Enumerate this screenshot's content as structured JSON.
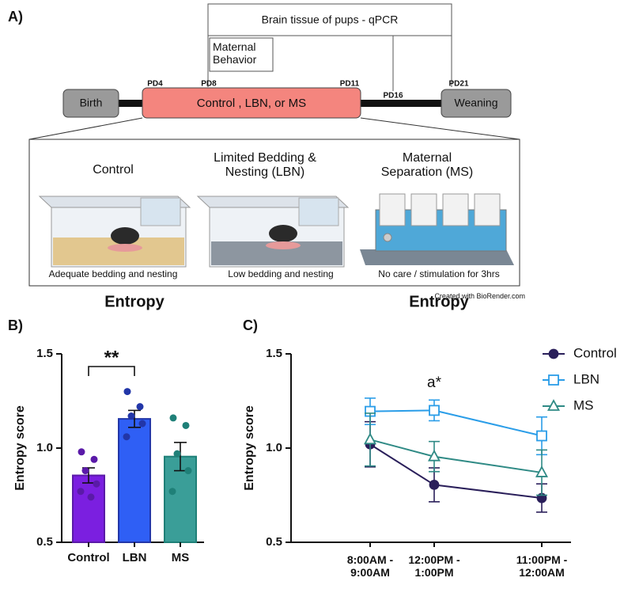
{
  "panel_a": {
    "label": "A)",
    "qpcr": "Brain tissue of pups - qPCR",
    "maternal_behavior": "Maternal Behavior",
    "timepoints": [
      "PD4",
      "PD8",
      "PD11",
      "PD16",
      "PD21"
    ],
    "birth": "Birth",
    "treatment": "Control , LBN, or MS",
    "weaning": "Weaning",
    "conditions": [
      {
        "name": "Control",
        "caption": "Adequate bedding and nesting"
      },
      {
        "name": "Limited Bedding & Nesting (LBN)",
        "caption": "Low bedding and nesting"
      },
      {
        "name": "Maternal Separation (MS)",
        "caption": "No care / stimulation for 3hrs"
      }
    ],
    "credit": "Created with BioRender.com"
  },
  "chart_data": [
    {
      "type": "bar",
      "panel_label": "B)",
      "title": "Entropy",
      "y_label": "Entropy score",
      "categories": [
        "Control",
        "LBN",
        "MS"
      ],
      "values": [
        0.855,
        1.155,
        0.955
      ],
      "errors": [
        0.04,
        0.045,
        0.075
      ],
      "colors": [
        "#7b1fe0",
        "#2f5ff5",
        "#3a9e98"
      ],
      "point_colors": [
        "#5a1aa8",
        "#2236a8",
        "#1f8078"
      ],
      "points": [
        [
          0.98,
          0.94,
          0.88,
          0.81,
          0.77,
          0.74
        ],
        [
          1.3,
          1.22,
          1.17,
          1.13,
          1.06
        ],
        [
          1.16,
          1.12,
          0.97,
          0.88,
          0.77
        ]
      ],
      "ylim": [
        0.5,
        1.5
      ],
      "yticks": [
        {
          "value": 0.5,
          "label": "0.5"
        },
        {
          "value": 1.0,
          "label": "1.0"
        },
        {
          "value": 1.5,
          "label": "1.5"
        }
      ],
      "annotation": "**"
    },
    {
      "type": "line",
      "panel_label": "C)",
      "title": "Entropy",
      "y_label": "Entropy score",
      "categories": [
        "8:00AM - 9:00AM",
        "12:00PM - 1:00PM",
        "11:00PM - 12:00AM"
      ],
      "series": [
        {
          "name": "Control",
          "color": "#2a1f5a",
          "marker": "circle",
          "values": [
            1.02,
            0.805,
            0.735
          ],
          "errors": [
            0.12,
            0.09,
            0.075
          ]
        },
        {
          "name": "LBN",
          "color": "#2a9de8",
          "marker": "square",
          "values": [
            1.195,
            1.2,
            1.065
          ],
          "errors": [
            0.07,
            0.055,
            0.1
          ]
        },
        {
          "name": "MS",
          "color": "#2f8a85",
          "marker": "triangle",
          "values": [
            1.045,
            0.955,
            0.87
          ],
          "errors": [
            0.14,
            0.08,
            0.12
          ]
        }
      ],
      "ylim": [
        0.5,
        1.5
      ],
      "yticks": [
        {
          "value": 0.5,
          "label": "0.5"
        },
        {
          "value": 1.0,
          "label": "1.0"
        },
        {
          "value": 1.5,
          "label": "1.5"
        }
      ],
      "annotation": "a*",
      "legend": "upper right"
    }
  ]
}
